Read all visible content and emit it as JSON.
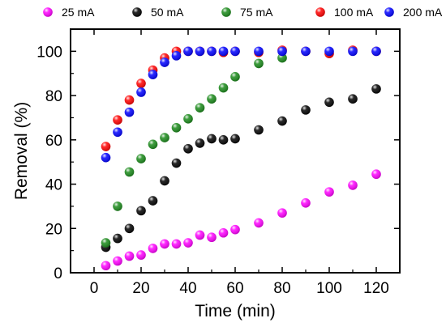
{
  "chart_data": {
    "type": "scatter",
    "title": "",
    "xlabel": "Time (min)",
    "ylabel": "Removal (%)",
    "xlim": [
      -10,
      130
    ],
    "ylim": [
      0,
      110
    ],
    "xticks": [
      0,
      20,
      40,
      60,
      80,
      100,
      120
    ],
    "yticks": [
      0,
      20,
      40,
      60,
      80,
      100
    ],
    "grid": false,
    "legend_position": "top",
    "series": [
      {
        "name": "25 mA",
        "color": "#ff00ff",
        "x": [
          5,
          10,
          15,
          20,
          25,
          30,
          35,
          40,
          45,
          50,
          55,
          60,
          70,
          80,
          90,
          100,
          110,
          120
        ],
        "y": [
          3.2,
          5.3,
          7.5,
          8,
          11,
          13,
          13,
          13.5,
          17,
          16,
          18,
          19.5,
          22.5,
          27,
          31.5,
          36.5,
          39.5,
          44.5
        ]
      },
      {
        "name": "50 mA",
        "color": "#000000",
        "x": [
          5,
          10,
          15,
          20,
          25,
          30,
          35,
          40,
          45,
          50,
          55,
          60,
          70,
          80,
          90,
          100,
          110,
          120
        ],
        "y": [
          11.5,
          15.5,
          20,
          28,
          32.5,
          41.5,
          49.5,
          56,
          58.5,
          60.5,
          60,
          60.5,
          64.5,
          68.5,
          73.5,
          77,
          78.5,
          83
        ]
      },
      {
        "name": "75 mA",
        "color": "#1a8a1a",
        "x": [
          5,
          10,
          15,
          20,
          25,
          30,
          35,
          40,
          45,
          50,
          55,
          60,
          70,
          80
        ],
        "y": [
          13.5,
          30,
          45.5,
          51.5,
          58,
          61,
          65.5,
          69.5,
          74.5,
          78.5,
          83.5,
          88.5,
          94.5,
          97
        ]
      },
      {
        "name": "100 mA",
        "color": "#ff0000",
        "x": [
          5,
          10,
          15,
          20,
          25,
          30,
          35,
          40,
          45,
          50,
          55,
          60,
          70,
          80,
          90,
          100,
          110,
          120
        ],
        "y": [
          57,
          69,
          78,
          85.5,
          91.5,
          97,
          100,
          100,
          100,
          100,
          99.5,
          100,
          99.5,
          100.5,
          100,
          99,
          100.5,
          100
        ]
      },
      {
        "name": "200 mA",
        "color": "#0000ff",
        "x": [
          5,
          10,
          15,
          20,
          25,
          30,
          35,
          40,
          45,
          50,
          55,
          60,
          70,
          80,
          90,
          100,
          110,
          120
        ],
        "y": [
          52,
          63.5,
          72.5,
          81.5,
          89.5,
          95,
          98,
          100,
          100,
          100,
          100,
          100,
          100,
          100,
          100,
          100,
          100,
          100
        ]
      }
    ]
  }
}
